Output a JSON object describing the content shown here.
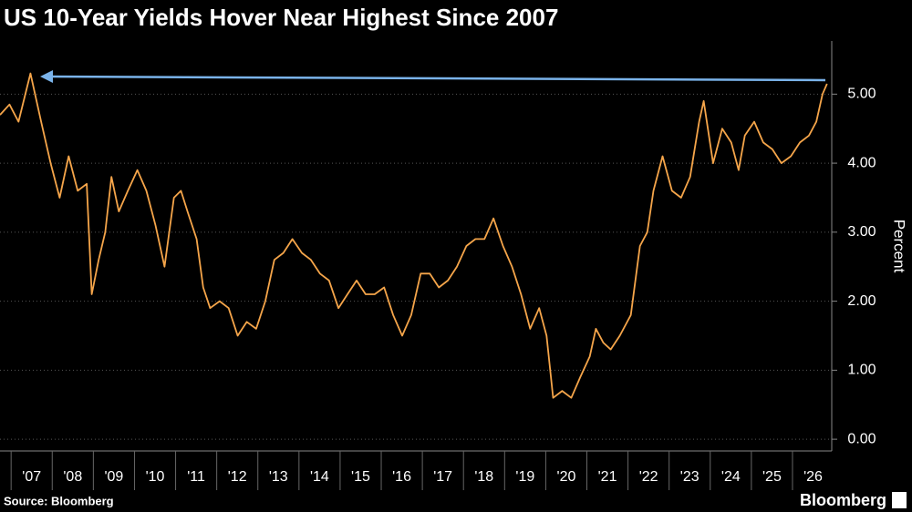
{
  "chart_data": {
    "type": "line",
    "title": "US 10-Year Yields Hover Near Highest Since 2007",
    "y_axis_label": "Percent",
    "source": "Source: Bloomberg",
    "brand": "Bloomberg",
    "xlim": [
      2006.73,
      2026.91
    ],
    "ylim": [
      -0.17,
      5.77
    ],
    "xticks": [
      {
        "value": 2007.5,
        "label": "'07"
      },
      {
        "value": 2008.5,
        "label": "'08"
      },
      {
        "value": 2009.5,
        "label": "'09"
      },
      {
        "value": 2010.5,
        "label": "'10"
      },
      {
        "value": 2011.5,
        "label": "'11"
      },
      {
        "value": 2012.5,
        "label": "'12"
      },
      {
        "value": 2013.5,
        "label": "'13"
      },
      {
        "value": 2014.5,
        "label": "'14"
      },
      {
        "value": 2015.5,
        "label": "'15"
      },
      {
        "value": 2016.5,
        "label": "'16"
      },
      {
        "value": 2017.5,
        "label": "'17"
      },
      {
        "value": 2018.5,
        "label": "'18"
      },
      {
        "value": 2019.5,
        "label": "'19"
      },
      {
        "value": 2020.5,
        "label": "'20"
      },
      {
        "value": 2021.5,
        "label": "'21"
      },
      {
        "value": 2022.5,
        "label": "'22"
      },
      {
        "value": 2023.5,
        "label": "'23"
      },
      {
        "value": 2024.5,
        "label": "'24"
      },
      {
        "value": 2025.5,
        "label": "'25"
      },
      {
        "value": 2026.5,
        "label": "'26"
      }
    ],
    "yticks": [
      {
        "value": 0,
        "label": "0.00"
      },
      {
        "value": 1,
        "label": "1.00"
      },
      {
        "value": 2,
        "label": "2.00"
      },
      {
        "value": 3,
        "label": "3.00"
      },
      {
        "value": 4,
        "label": "4.00"
      },
      {
        "value": 5,
        "label": "5.00"
      }
    ],
    "grid": true,
    "x": [
      2006.73,
      2006.96,
      2007.18,
      2007.47,
      2007.73,
      2007.96,
      2008.18,
      2008.4,
      2008.62,
      2008.84,
      2008.96,
      2009.13,
      2009.29,
      2009.44,
      2009.62,
      2009.84,
      2010.07,
      2010.29,
      2010.51,
      2010.73,
      2010.96,
      2011.13,
      2011.29,
      2011.51,
      2011.67,
      2011.84,
      2012.07,
      2012.29,
      2012.51,
      2012.73,
      2012.96,
      2013.18,
      2013.4,
      2013.62,
      2013.84,
      2014.07,
      2014.29,
      2014.51,
      2014.73,
      2014.96,
      2015.18,
      2015.4,
      2015.62,
      2015.84,
      2016.07,
      2016.29,
      2016.51,
      2016.73,
      2016.96,
      2017.18,
      2017.4,
      2017.62,
      2017.84,
      2018.07,
      2018.29,
      2018.51,
      2018.73,
      2018.96,
      2019.18,
      2019.4,
      2019.62,
      2019.84,
      2020.02,
      2020.18,
      2020.4,
      2020.62,
      2020.84,
      2021.07,
      2021.22,
      2021.4,
      2021.58,
      2021.8,
      2022.07,
      2022.29,
      2022.47,
      2022.62,
      2022.84,
      2023.07,
      2023.29,
      2023.51,
      2023.73,
      2023.84,
      2024.07,
      2024.29,
      2024.51,
      2024.69,
      2024.84,
      2025.07,
      2025.29,
      2025.51,
      2025.73,
      2025.96,
      2026.18,
      2026.4,
      2026.58,
      2026.73,
      2026.84
    ],
    "series": [
      {
        "name": "US 10-Year Yield",
        "color": "#f5a54a",
        "values": [
          4.7,
          4.85,
          4.6,
          5.3,
          4.6,
          4.0,
          3.5,
          4.1,
          3.6,
          3.7,
          2.1,
          2.6,
          3.0,
          3.8,
          3.3,
          3.6,
          3.9,
          3.6,
          3.1,
          2.5,
          3.5,
          3.6,
          3.3,
          2.9,
          2.2,
          1.9,
          2.0,
          1.9,
          1.5,
          1.7,
          1.6,
          2.0,
          2.6,
          2.7,
          2.9,
          2.7,
          2.6,
          2.4,
          2.3,
          1.9,
          2.1,
          2.3,
          2.1,
          2.1,
          2.2,
          1.8,
          1.5,
          1.8,
          2.4,
          2.4,
          2.2,
          2.3,
          2.5,
          2.8,
          2.9,
          2.9,
          3.2,
          2.8,
          2.5,
          2.1,
          1.6,
          1.9,
          1.5,
          0.6,
          0.7,
          0.6,
          0.9,
          1.2,
          1.6,
          1.4,
          1.3,
          1.5,
          1.8,
          2.8,
          3.0,
          3.6,
          4.1,
          3.6,
          3.5,
          3.8,
          4.6,
          4.9,
          4.0,
          4.5,
          4.3,
          3.9,
          4.4,
          4.6,
          4.3,
          4.2,
          4.0,
          4.1,
          4.3,
          4.4,
          4.6,
          5.0,
          5.15
        ]
      }
    ]
  }
}
